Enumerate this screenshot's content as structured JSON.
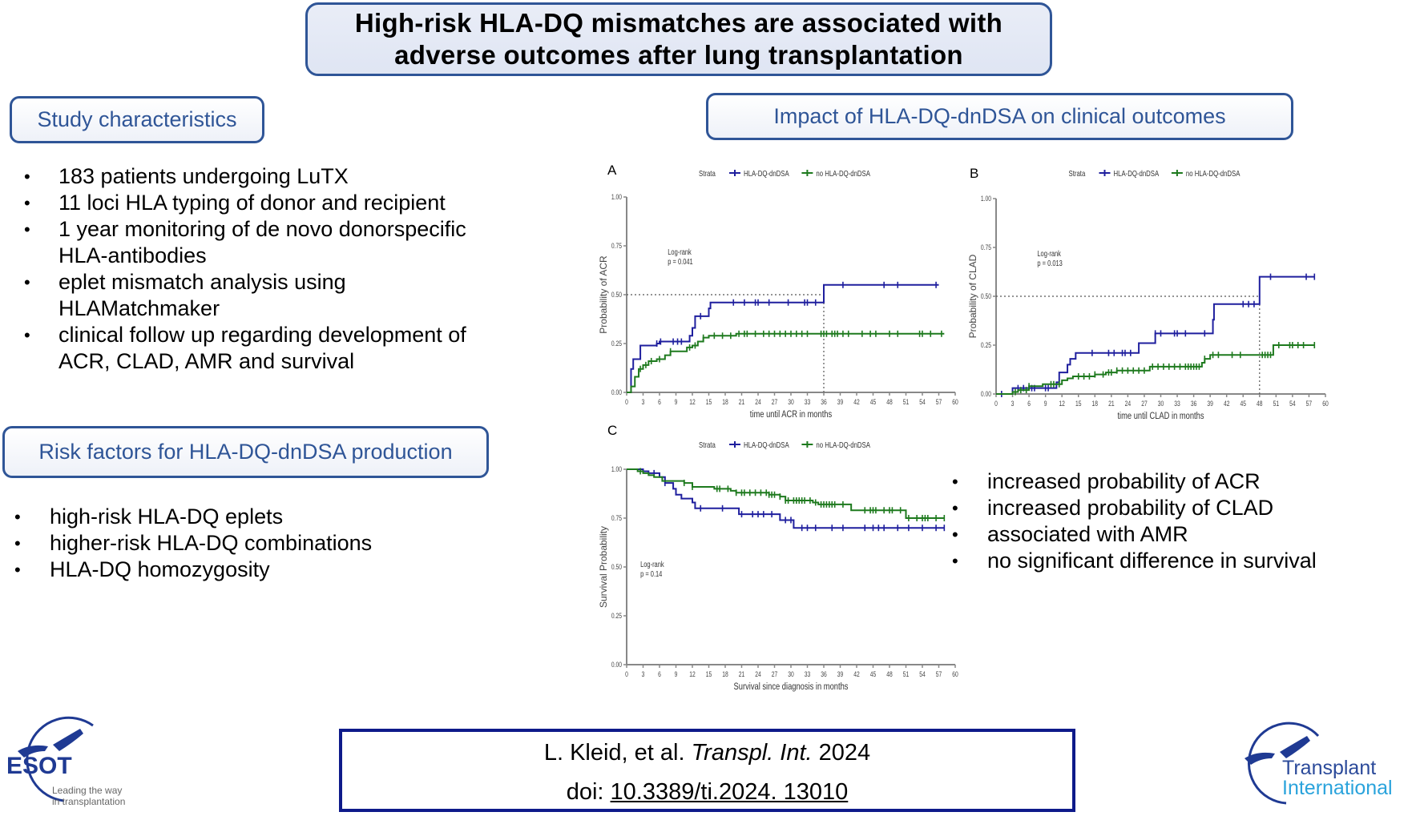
{
  "title": {
    "line1": "High-risk HLA-DQ mismatches are associated with",
    "line2": "adverse outcomes after lung transplantation"
  },
  "study": {
    "heading": "Study characteristics",
    "items": [
      {
        "line1": "183 patients undergoing LuTX"
      },
      {
        "line1": "11 loci HLA typing of donor and recipient"
      },
      {
        "line1": "1 year monitoring of de novo donorspecific",
        "line2": "HLA-antibodies"
      },
      {
        "line1": "eplet mismatch analysis using",
        "line2": "HLAMatchmaker"
      },
      {
        "line1": "clinical follow up regarding development of",
        "line2": "ACR, CLAD, AMR and survival"
      }
    ]
  },
  "risk": {
    "heading": "Risk factors for HLA-DQ-dnDSA production",
    "items": [
      "high-risk HLA-DQ eplets",
      "higher-risk HLA-DQ combinations",
      "HLA-DQ homozygosity"
    ]
  },
  "impact": {
    "heading": "Impact of HLA-DQ-dnDSA on clinical outcomes",
    "items": [
      "increased probability of ACR",
      "increased probability of CLAD",
      "associated with AMR",
      "no significant difference in survival"
    ]
  },
  "citation": {
    "authors": "L. Kleid, et al.",
    "journal": "Transpl. Int.",
    "year": "2024",
    "doi_label": "doi:",
    "doi": "10.3389/ti.2024. 13010"
  },
  "logos": {
    "esot": {
      "name": "ESOT",
      "tagline1": "Leading the way",
      "tagline2": "in transplantation"
    },
    "ti": {
      "line1": "Transplant",
      "line2": "International"
    }
  },
  "colors": {
    "accent": "#2f5597",
    "dndsa": "#1f1f9e",
    "no_dndsa": "#1e7a1e",
    "citation_border": "#0e1a8a",
    "ti_light": "#2aa3dc"
  },
  "chart_data": [
    {
      "panel": "A",
      "type": "line",
      "step": true,
      "legend_title": "Strata",
      "legend": [
        "HLA-DQ-dnDSA",
        "no HLA-DQ-dnDSA"
      ],
      "legend_position": "top",
      "xlabel": "time until ACR in months",
      "ylabel": "Probability of ACR",
      "xlim": [
        0,
        60
      ],
      "ylim": [
        0,
        1
      ],
      "xticks": [
        "0",
        "3",
        "6",
        "9",
        "12",
        "15",
        "18",
        "21",
        "24",
        "27",
        "30",
        "33",
        "36",
        "39",
        "42",
        "45",
        "48",
        "51",
        "54",
        "57",
        "60"
      ],
      "yticks": [
        "0.00",
        "0.25",
        "0.50",
        "0.75",
        "1.00"
      ],
      "annotation": {
        "line1": "Log-rank",
        "line2": "p = 0.041"
      },
      "median_line": {
        "y": 0.5,
        "x": 36
      },
      "series": [
        {
          "name": "HLA-DQ-dnDSA",
          "x": [
            0,
            0.8,
            1.2,
            2.5,
            5.5,
            6,
            11.5,
            12,
            12.5,
            15,
            15.3,
            36,
            57
          ],
          "y": [
            0,
            0.12,
            0.17,
            0.24,
            0.25,
            0.26,
            0.29,
            0.33,
            0.39,
            0.43,
            0.46,
            0.55,
            0.55
          ],
          "censor_x": [
            5.5,
            6.2,
            8.5,
            9.3,
            10,
            13.5,
            19.5,
            21.5,
            23.5,
            24,
            26,
            29.5,
            32.5,
            33,
            34.5,
            39.5,
            47,
            49.5,
            56.5
          ]
        },
        {
          "name": "no HLA-DQ-dnDSA",
          "x": [
            0,
            0.8,
            1.5,
            2.2,
            3,
            4,
            5.5,
            7,
            8,
            11,
            12,
            13,
            14,
            15,
            17,
            20,
            58
          ],
          "y": [
            0,
            0.03,
            0.08,
            0.12,
            0.14,
            0.16,
            0.17,
            0.19,
            0.21,
            0.23,
            0.24,
            0.26,
            0.28,
            0.29,
            0.29,
            0.3,
            0.3
          ],
          "censor_x": [
            2.5,
            3.5,
            4.5,
            6,
            8,
            11.5,
            12.5,
            14,
            16,
            17.5,
            19,
            20.5,
            21.5,
            22,
            23.5,
            25,
            26,
            27,
            28,
            29,
            30,
            31,
            32,
            33,
            35.5,
            36,
            36.5,
            37.5,
            38,
            38.5,
            39.5,
            40.5,
            43,
            44.5,
            45.5,
            48,
            49.5,
            53.5,
            54,
            55.5,
            57.5
          ]
        }
      ]
    },
    {
      "panel": "B",
      "type": "line",
      "step": true,
      "legend_title": "Strata",
      "legend": [
        "HLA-DQ-dnDSA",
        "no HLA-DQ-dnDSA"
      ],
      "legend_position": "top",
      "xlabel": "time until CLAD in months",
      "ylabel": "Probability of CLAD",
      "xlim": [
        0,
        60
      ],
      "ylim": [
        0,
        1
      ],
      "xticks": [
        "0",
        "3",
        "6",
        "9",
        "12",
        "15",
        "18",
        "21",
        "24",
        "27",
        "30",
        "33",
        "36",
        "39",
        "42",
        "45",
        "48",
        "51",
        "54",
        "57",
        "60"
      ],
      "yticks": [
        "0.00",
        "0.25",
        "0.50",
        "0.75",
        "1.00"
      ],
      "annotation": {
        "line1": "Log-rank",
        "line2": "p = 0.013"
      },
      "median_line": {
        "y": 0.5,
        "x": 48
      },
      "series": [
        {
          "name": "HLA-DQ-dnDSA",
          "x": [
            0,
            3,
            11,
            11.5,
            13,
            13.5,
            14.5,
            26,
            29,
            39.5,
            39.7,
            48,
            58
          ],
          "y": [
            0,
            0.03,
            0.06,
            0.11,
            0.15,
            0.18,
            0.21,
            0.26,
            0.31,
            0.38,
            0.46,
            0.6,
            0.6
          ],
          "censor_x": [
            1,
            4,
            5,
            6.5,
            7,
            9,
            9.5,
            17.5,
            20.5,
            21.5,
            23,
            23.5,
            24.5,
            29,
            30,
            32.5,
            33,
            34.5,
            38,
            45,
            46,
            47,
            50,
            56.5,
            58
          ]
        },
        {
          "name": "no HLA-DQ-dnDSA",
          "x": [
            0,
            3,
            4,
            6,
            8.5,
            11,
            12,
            13,
            14,
            18,
            20,
            22,
            24,
            28,
            37.5,
            38,
            39,
            50.5,
            58
          ],
          "y": [
            0,
            0.01,
            0.02,
            0.04,
            0.05,
            0.05,
            0.07,
            0.08,
            0.09,
            0.1,
            0.11,
            0.12,
            0.12,
            0.14,
            0.16,
            0.18,
            0.2,
            0.25,
            0.25
          ],
          "censor_x": [
            3.5,
            4.5,
            5.5,
            6,
            10,
            10.5,
            11.5,
            15,
            16,
            17,
            18,
            19.5,
            20.5,
            21,
            22,
            23,
            24,
            25,
            26,
            27,
            28.5,
            29.5,
            30.5,
            31.5,
            32.5,
            33.5,
            34.5,
            35,
            35.5,
            36,
            36.5,
            37,
            38,
            39.5,
            40.5,
            43,
            44.5,
            48.5,
            49,
            49.5,
            50,
            51.5,
            53.5,
            54,
            55,
            56,
            58
          ]
        }
      ]
    },
    {
      "panel": "C",
      "type": "line",
      "step": true,
      "legend_title": "Strata",
      "legend": [
        "HLA-DQ-dnDSA",
        "no HLA-DQ-dnDSA"
      ],
      "legend_position": "top",
      "xlabel": "Survival since diagnosis in months",
      "ylabel": "Survival Probability",
      "xlim": [
        0,
        60
      ],
      "ylim": [
        0,
        1
      ],
      "xticks": [
        "0",
        "3",
        "6",
        "9",
        "12",
        "15",
        "18",
        "21",
        "24",
        "27",
        "30",
        "33",
        "36",
        "39",
        "42",
        "45",
        "48",
        "51",
        "54",
        "57",
        "60"
      ],
      "yticks": [
        "0.00",
        "0.25",
        "0.50",
        "0.75",
        "1.00"
      ],
      "annotation": {
        "line1": "Log-rank",
        "line2": "p = 0.14"
      },
      "series": [
        {
          "name": "HLA-DQ-dnDSA",
          "x": [
            0,
            3,
            4,
            6,
            7,
            8.5,
            9,
            10,
            12,
            12.5,
            20.5,
            28,
            30.5,
            58
          ],
          "y": [
            1,
            0.99,
            0.98,
            0.96,
            0.93,
            0.9,
            0.87,
            0.85,
            0.83,
            0.8,
            0.77,
            0.74,
            0.7,
            0.7
          ],
          "censor_x": [
            5,
            7,
            13.5,
            17.5,
            21,
            23,
            24,
            25,
            26.5,
            29,
            30,
            32,
            33,
            34.5,
            37.5,
            39.5,
            43.5,
            45,
            46,
            47,
            49.5,
            51.5,
            54,
            56.5,
            58
          ]
        },
        {
          "name": "no HLA-DQ-dnDSA",
          "x": [
            0,
            2,
            3,
            4,
            5,
            6.5,
            10.5,
            12,
            16,
            19,
            20,
            22,
            26,
            28,
            29,
            34,
            35,
            41,
            51,
            58
          ],
          "y": [
            1,
            0.99,
            0.98,
            0.97,
            0.96,
            0.94,
            0.93,
            0.91,
            0.9,
            0.89,
            0.88,
            0.88,
            0.87,
            0.86,
            0.84,
            0.83,
            0.82,
            0.79,
            0.75,
            0.75
          ],
          "censor_x": [
            2.5,
            10.5,
            12,
            16.5,
            17,
            18.5,
            20,
            21,
            21.5,
            22.5,
            23.5,
            24.5,
            25.5,
            26,
            26.5,
            27,
            28,
            29,
            29.5,
            30.5,
            31,
            31.5,
            32,
            32.5,
            33.5,
            34.5,
            35.5,
            36,
            36.5,
            37,
            37.5,
            38,
            39.5,
            43.5,
            44.5,
            45,
            45.5,
            47,
            48,
            48.5,
            50,
            51.5,
            53,
            54,
            54.5,
            55,
            56.5,
            58
          ]
        }
      ]
    }
  ]
}
